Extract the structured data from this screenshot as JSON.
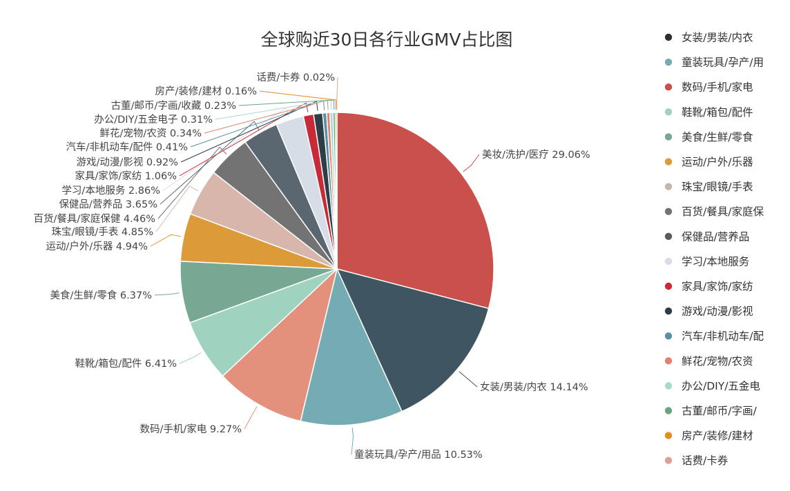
{
  "chart_data": {
    "type": "pie",
    "title": "全球购近30日各行业GMV占比图",
    "slices": [
      {
        "label": "美妆/洗护/医疗",
        "display": "美妆/洗护/医疗 29.06%",
        "value": 29.06,
        "color": "#c9504b"
      },
      {
        "label": "女装/男装/内衣",
        "display": "女装/男装/内衣 14.14%",
        "value": 14.14,
        "color": "#3f5562"
      },
      {
        "label": "童装玩具/孕产/用品",
        "display": "童装玩具/孕产/用品 10.53%",
        "value": 10.53,
        "color": "#75abb3"
      },
      {
        "label": "数码/手机/家电",
        "display": "数码/手机/家电 9.27%",
        "value": 9.27,
        "color": "#e3917c"
      },
      {
        "label": "鞋靴/箱包/配件",
        "display": "鞋靴/箱包/配件 6.41%",
        "value": 6.41,
        "color": "#9fd2bf"
      },
      {
        "label": "美食/生鲜/零食",
        "display": "美食/生鲜/零食 6.37%",
        "value": 6.37,
        "color": "#76a893"
      },
      {
        "label": "运动/户外/乐器",
        "display": "运动/户外/乐器 4.94%",
        "value": 4.94,
        "color": "#dc9a38"
      },
      {
        "label": "珠宝/眼镜/手表",
        "display": "珠宝/眼镜/手表 4.85%",
        "value": 4.85,
        "color": "#d9b6ac"
      },
      {
        "label": "百货/餐具/家庭保健",
        "display": "百货/餐具/家庭保健 4.46%",
        "value": 4.46,
        "color": "#737373"
      },
      {
        "label": "保健品/营养品",
        "display": "保健品/营养品 3.65%",
        "value": 3.65,
        "color": "#5b6770"
      },
      {
        "label": "学习/本地服务",
        "display": "学习/本地服务 2.86%",
        "value": 2.86,
        "color": "#d6dde6"
      },
      {
        "label": "家具/家饰/家纺",
        "display": "家具/家饰/家纺 1.06%",
        "value": 1.06,
        "color": "#c82b38"
      },
      {
        "label": "游戏/动漫/影视",
        "display": "游戏/动漫/影视 0.92%",
        "value": 0.92,
        "color": "#2c3e46"
      },
      {
        "label": "汽车/非机动车/配件",
        "display": "汽车/非机动车/配件 0.41%",
        "value": 0.41,
        "color": "#5a90a3"
      },
      {
        "label": "鲜花/宠物/农资",
        "display": "鲜花/宠物/农资 0.34%",
        "value": 0.34,
        "color": "#e2826e"
      },
      {
        "label": "办公/DIY/五金电子",
        "display": "办公/DIY/五金电子 0.31%",
        "value": 0.31,
        "color": "#a9d9cb"
      },
      {
        "label": "古董/邮币/字画/收藏",
        "display": "古董/邮币/字画/收藏 0.23%",
        "value": 0.23,
        "color": "#6aa384"
      },
      {
        "label": "房产/装修/建材",
        "display": "房产/装修/建材 0.16%",
        "value": 0.16,
        "color": "#e08f1f"
      },
      {
        "label": "话费/卡券",
        "display": "话费/卡券 0.02%",
        "value": 0.02,
        "color": "#d8a39b"
      }
    ],
    "legend": {
      "placement": "right",
      "entries": [
        "女装/男装/内衣",
        "童装玩具/孕产/用",
        "数码/手机/家电",
        "鞋靴/箱包/配件",
        "美食/生鲜/零食",
        "运动/户外/乐器",
        "珠宝/眼镜/手表",
        "百货/餐具/家庭保",
        "保健品/营养品",
        "学习/本地服务",
        "家具/家饰/家纺",
        "游戏/动漫/影视",
        "汽车/非机动车/配",
        "鲜花/宠物/农资",
        "办公/DIY/五金电",
        "古董/邮币/字画/",
        "房产/装修/建材",
        "话费/卡券"
      ],
      "colors": [
        "#2f2f2f",
        "#75abb3",
        "#c9504b",
        "#9fd2bf",
        "#76a893",
        "#dc9a38",
        "#c8b3ad",
        "#737373",
        "#5b5b5b",
        "#d6dde6",
        "#c82b38",
        "#2c3e46",
        "#5a90a3",
        "#e2826e",
        "#a9d9cb",
        "#6aa384",
        "#e08f1f",
        "#d8a39b"
      ]
    }
  }
}
